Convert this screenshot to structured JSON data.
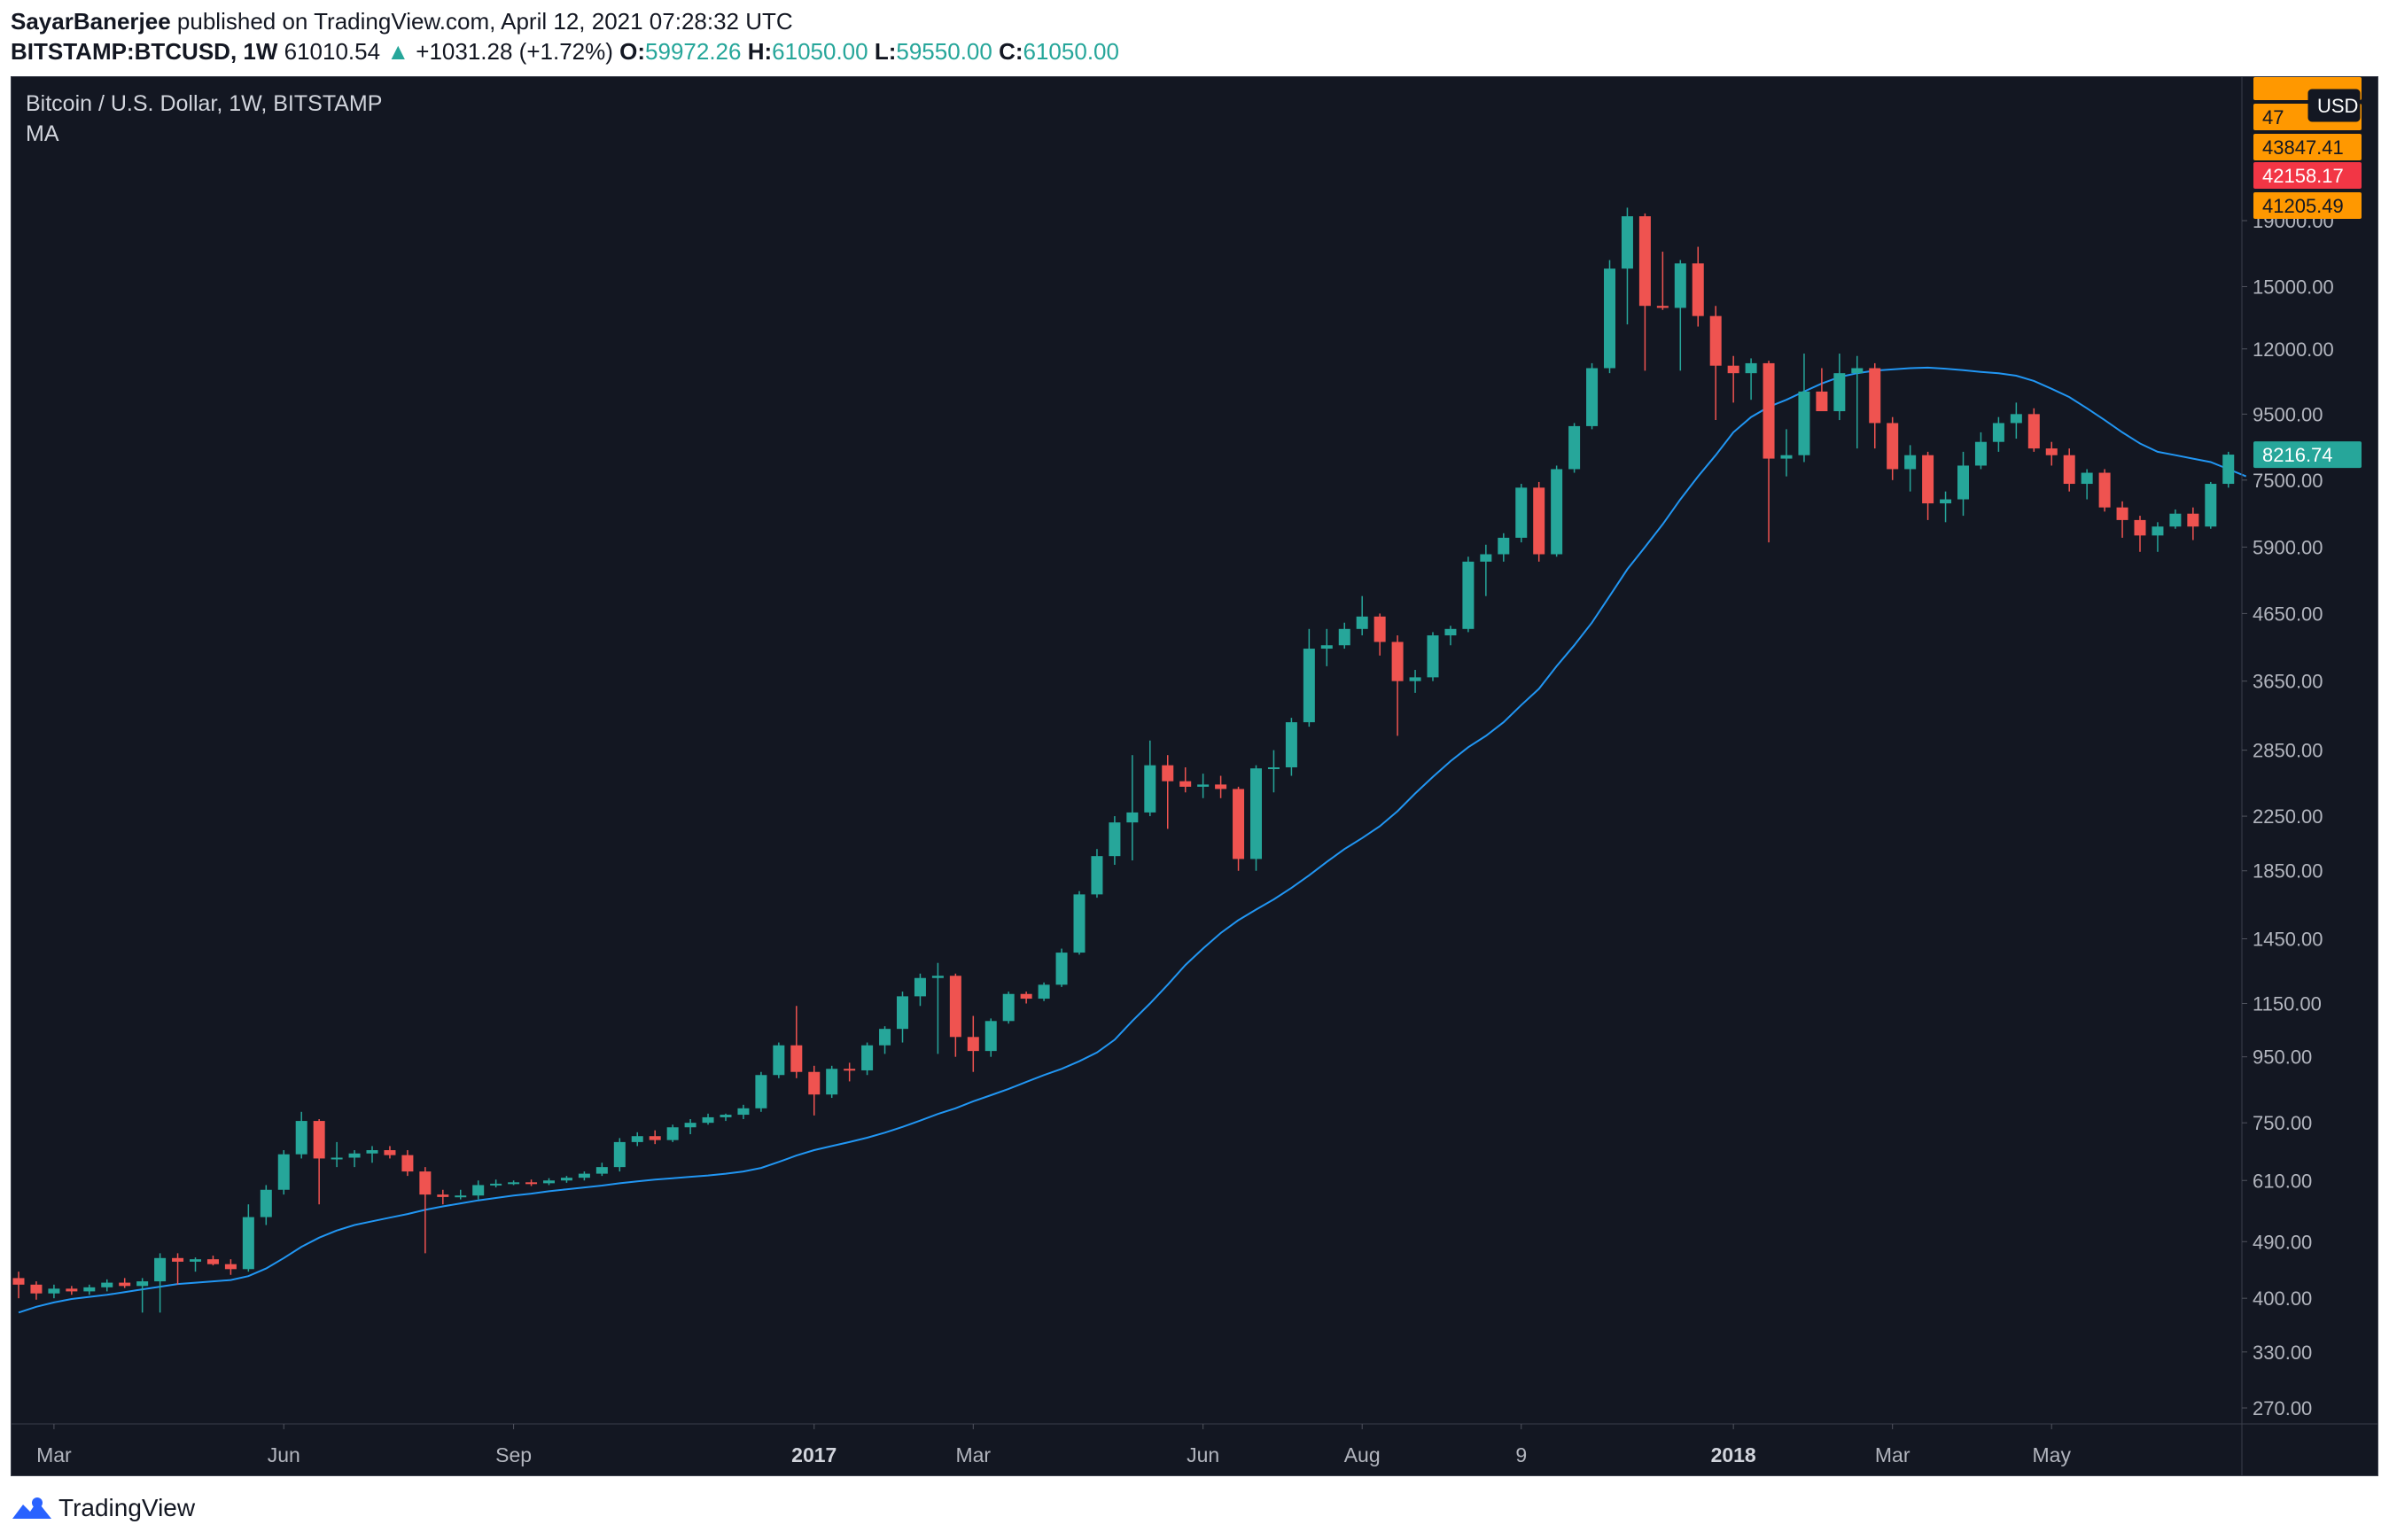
{
  "header": {
    "author": "SayarBanerjee",
    "published_text": "published on TradingView.com, April 12, 2021 07:28:32 UTC",
    "symbol": "BITSTAMP:BTCUSD, 1W",
    "last_price": "61010.54",
    "change_arrow": "▲",
    "change": "+1031.28 (+1.72%)",
    "open_label": "O:",
    "open": "59972.26",
    "high_label": "H:",
    "high": "61050.00",
    "low_label": "L:",
    "low": "59550.00",
    "close_label": "C:",
    "close": "61050.00"
  },
  "legend": {
    "title": "Bitcoin / U.S. Dollar, 1W, BITSTAMP",
    "indicator": "MA"
  },
  "footer": {
    "brand": "TradingView"
  },
  "colors": {
    "background": "#131722",
    "up": "#26a69a",
    "down": "#ef5350",
    "ma": "#2196f3",
    "text": "#b2b5be",
    "orange_tag": "#ff9800",
    "red_tag": "#f23645"
  },
  "chart_data": {
    "type": "candlestick",
    "title": "Bitcoin / U.S. Dollar, 1W, BITSTAMP",
    "scale": "log",
    "currency": "USD",
    "y_ticks": [
      270,
      330,
      400,
      490,
      610,
      750,
      950,
      1150,
      1450,
      1850,
      2250,
      2850,
      3650,
      4650,
      5900,
      7500,
      9500,
      12000,
      15000,
      19000
    ],
    "y_tick_labels": [
      "270.00",
      "330.00",
      "400.00",
      "490.00",
      "610.00",
      "750.00",
      "950.00",
      "1150.00",
      "1450.00",
      "1850.00",
      "2250.00",
      "2850.00",
      "3650.00",
      "4650.00",
      "5900.00",
      "7500.00",
      "9500.00",
      "12000.00",
      "15000.00",
      "19000.00"
    ],
    "x_labels": [
      {
        "label": "Mar",
        "index": 2,
        "bold": false
      },
      {
        "label": "Jun",
        "index": 15,
        "bold": false
      },
      {
        "label": "Sep",
        "index": 28,
        "bold": false
      },
      {
        "label": "2017",
        "index": 45,
        "bold": true
      },
      {
        "label": "Mar",
        "index": 54,
        "bold": false
      },
      {
        "label": "Jun",
        "index": 67,
        "bold": false
      },
      {
        "label": "Aug",
        "index": 76,
        "bold": false
      },
      {
        "label": "9",
        "index": 85,
        "bold": false
      },
      {
        "label": "2018",
        "index": 97,
        "bold": true
      },
      {
        "label": "Mar",
        "index": 106,
        "bold": false
      },
      {
        "label": "May",
        "index": 115,
        "bold": false
      }
    ],
    "price_tags": [
      {
        "label": "USD",
        "type": "currency"
      },
      {
        "label": "47",
        "type": "orange",
        "value": 47000
      },
      {
        "label": "43847.41",
        "type": "orange",
        "value": 43847.41
      },
      {
        "label": "42158.17",
        "type": "red",
        "value": 42158.17
      },
      {
        "label": "41205.49",
        "type": "orange",
        "value": 41205.49
      },
      {
        "label": "8216.74",
        "type": "teal",
        "value": 8216.74
      }
    ],
    "candles": [
      [
        430,
        440,
        400,
        420
      ],
      [
        420,
        425,
        398,
        407
      ],
      [
        407,
        420,
        400,
        414
      ],
      [
        414,
        418,
        405,
        410
      ],
      [
        410,
        420,
        405,
        416
      ],
      [
        416,
        428,
        410,
        423
      ],
      [
        423,
        430,
        415,
        418
      ],
      [
        418,
        430,
        380,
        425
      ],
      [
        425,
        470,
        380,
        462
      ],
      [
        462,
        470,
        420,
        456
      ],
      [
        456,
        463,
        440,
        460
      ],
      [
        460,
        466,
        450,
        452
      ],
      [
        452,
        460,
        435,
        444
      ],
      [
        444,
        560,
        440,
        535
      ],
      [
        535,
        600,
        520,
        590
      ],
      [
        590,
        680,
        580,
        670
      ],
      [
        670,
        780,
        660,
        755
      ],
      [
        755,
        760,
        560,
        660
      ],
      [
        660,
        700,
        640,
        662
      ],
      [
        662,
        680,
        640,
        672
      ],
      [
        672,
        690,
        650,
        680
      ],
      [
        680,
        690,
        660,
        668
      ],
      [
        668,
        680,
        620,
        630
      ],
      [
        630,
        640,
        470,
        580
      ],
      [
        580,
        590,
        560,
        575
      ],
      [
        575,
        590,
        570,
        578
      ],
      [
        578,
        610,
        570,
        600
      ],
      [
        600,
        612,
        595,
        603
      ],
      [
        603,
        610,
        600,
        606
      ],
      [
        606,
        612,
        598,
        604
      ],
      [
        604,
        615,
        600,
        610
      ],
      [
        610,
        620,
        605,
        616
      ],
      [
        616,
        630,
        610,
        625
      ],
      [
        625,
        650,
        620,
        640
      ],
      [
        640,
        710,
        630,
        700
      ],
      [
        700,
        725,
        690,
        715
      ],
      [
        715,
        730,
        695,
        705
      ],
      [
        705,
        745,
        700,
        738
      ],
      [
        738,
        760,
        720,
        750
      ],
      [
        750,
        775,
        745,
        765
      ],
      [
        765,
        775,
        755,
        772
      ],
      [
        772,
        800,
        760,
        790
      ],
      [
        790,
        900,
        780,
        890
      ],
      [
        890,
        1000,
        880,
        990
      ],
      [
        990,
        1140,
        880,
        900
      ],
      [
        900,
        920,
        770,
        830
      ],
      [
        830,
        920,
        820,
        910
      ],
      [
        910,
        930,
        870,
        905
      ],
      [
        905,
        1000,
        890,
        990
      ],
      [
        990,
        1060,
        960,
        1050
      ],
      [
        1050,
        1200,
        1000,
        1180
      ],
      [
        1180,
        1280,
        1140,
        1260
      ],
      [
        1260,
        1330,
        960,
        1270
      ],
      [
        1270,
        1280,
        950,
        1020
      ],
      [
        1020,
        1100,
        900,
        970
      ],
      [
        970,
        1090,
        950,
        1080
      ],
      [
        1080,
        1200,
        1070,
        1190
      ],
      [
        1190,
        1200,
        1150,
        1170
      ],
      [
        1170,
        1240,
        1160,
        1230
      ],
      [
        1230,
        1400,
        1220,
        1380
      ],
      [
        1380,
        1720,
        1370,
        1700
      ],
      [
        1700,
        2000,
        1680,
        1950
      ],
      [
        1950,
        2250,
        1890,
        2200
      ],
      [
        2200,
        2800,
        1920,
        2280
      ],
      [
        2280,
        2950,
        2250,
        2700
      ],
      [
        2700,
        2800,
        2150,
        2550
      ],
      [
        2550,
        2680,
        2450,
        2500
      ],
      [
        2500,
        2620,
        2400,
        2520
      ],
      [
        2520,
        2600,
        2400,
        2480
      ],
      [
        2480,
        2500,
        1850,
        1930
      ],
      [
        1930,
        2700,
        1850,
        2670
      ],
      [
        2670,
        2850,
        2450,
        2680
      ],
      [
        2680,
        3200,
        2600,
        3150
      ],
      [
        3150,
        4400,
        3100,
        4100
      ],
      [
        4100,
        4400,
        3850,
        4150
      ],
      [
        4150,
        4500,
        4100,
        4400
      ],
      [
        4400,
        4950,
        4300,
        4600
      ],
      [
        4600,
        4650,
        4000,
        4200
      ],
      [
        4200,
        4300,
        3000,
        3650
      ],
      [
        3650,
        3800,
        3500,
        3700
      ],
      [
        3700,
        4350,
        3650,
        4300
      ],
      [
        4300,
        4450,
        4150,
        4400
      ],
      [
        4400,
        5700,
        4350,
        5600
      ],
      [
        5600,
        5950,
        4950,
        5750
      ],
      [
        5750,
        6200,
        5600,
        6100
      ],
      [
        6100,
        7400,
        6000,
        7300
      ],
      [
        7300,
        7450,
        5600,
        5750
      ],
      [
        5750,
        7900,
        5700,
        7800
      ],
      [
        7800,
        9200,
        7700,
        9100
      ],
      [
        9100,
        11400,
        9000,
        11200
      ],
      [
        11200,
        16500,
        11000,
        16000
      ],
      [
        16000,
        19900,
        13100,
        19300
      ],
      [
        19300,
        19500,
        11100,
        14000
      ],
      [
        14000,
        17000,
        13800,
        13900
      ],
      [
        13900,
        16500,
        11100,
        16300
      ],
      [
        16300,
        17300,
        13000,
        13500
      ],
      [
        13500,
        14000,
        9300,
        11300
      ],
      [
        11300,
        11700,
        9900,
        11000
      ],
      [
        11000,
        11600,
        10000,
        11400
      ],
      [
        11400,
        11500,
        6000,
        8100
      ],
      [
        8100,
        9000,
        7600,
        8200
      ],
      [
        8200,
        11800,
        8000,
        10300
      ],
      [
        10300,
        11200,
        9700,
        9600
      ],
      [
        9600,
        11800,
        9300,
        11000
      ],
      [
        11000,
        11700,
        8400,
        11200
      ],
      [
        11200,
        11400,
        8400,
        9200
      ],
      [
        9200,
        9400,
        7500,
        7800
      ],
      [
        7800,
        8500,
        7200,
        8200
      ],
      [
        8200,
        8300,
        6500,
        6900
      ],
      [
        6900,
        7200,
        6450,
        7000
      ],
      [
        7000,
        8300,
        6600,
        7900
      ],
      [
        7900,
        8900,
        7800,
        8600
      ],
      [
        8600,
        9400,
        8300,
        9200
      ],
      [
        9200,
        9900,
        8700,
        9500
      ],
      [
        9500,
        9700,
        8300,
        8400
      ],
      [
        8400,
        8600,
        7900,
        8200
      ],
      [
        8200,
        8400,
        7200,
        7400
      ],
      [
        7400,
        7800,
        7000,
        7700
      ],
      [
        7700,
        7800,
        6700,
        6800
      ],
      [
        6800,
        6950,
        6100,
        6500
      ],
      [
        6500,
        6600,
        5800,
        6150
      ],
      [
        6150,
        6450,
        5800,
        6350
      ],
      [
        6350,
        6750,
        6300,
        6650
      ],
      [
        6650,
        6800,
        6050,
        6350
      ],
      [
        6350,
        7450,
        6300,
        7400
      ],
      [
        7400,
        8300,
        7300,
        8216.74
      ]
    ],
    "ma": [
      380,
      388,
      394,
      399,
      402,
      405,
      409,
      413,
      417,
      421,
      423,
      425,
      427,
      433,
      445,
      462,
      481,
      497,
      510,
      520,
      527,
      534,
      541,
      549,
      556,
      562,
      568,
      573,
      578,
      582,
      587,
      591,
      595,
      599,
      604,
      608,
      612,
      615,
      618,
      621,
      625,
      630,
      638,
      652,
      667,
      680,
      690,
      700,
      711,
      724,
      739,
      756,
      774,
      790,
      810,
      828,
      847,
      868,
      890,
      910,
      935,
      965,
      1010,
      1080,
      1150,
      1230,
      1320,
      1400,
      1480,
      1550,
      1610,
      1670,
      1740,
      1820,
      1910,
      2000,
      2080,
      2170,
      2290,
      2440,
      2590,
      2740,
      2880,
      3000,
      3150,
      3350,
      3550,
      3850,
      4150,
      4500,
      4950,
      5450,
      5900,
      6400,
      7000,
      7600,
      8200,
      8900,
      9400,
      9750,
      10000,
      10300,
      10600,
      10850,
      11000,
      11100,
      11150,
      11200,
      11220,
      11180,
      11120,
      11050,
      11000,
      10900,
      10700,
      10400,
      10100,
      9700,
      9300,
      8900,
      8550,
      8300,
      8200,
      8100,
      8000,
      7800,
      7600
    ]
  }
}
